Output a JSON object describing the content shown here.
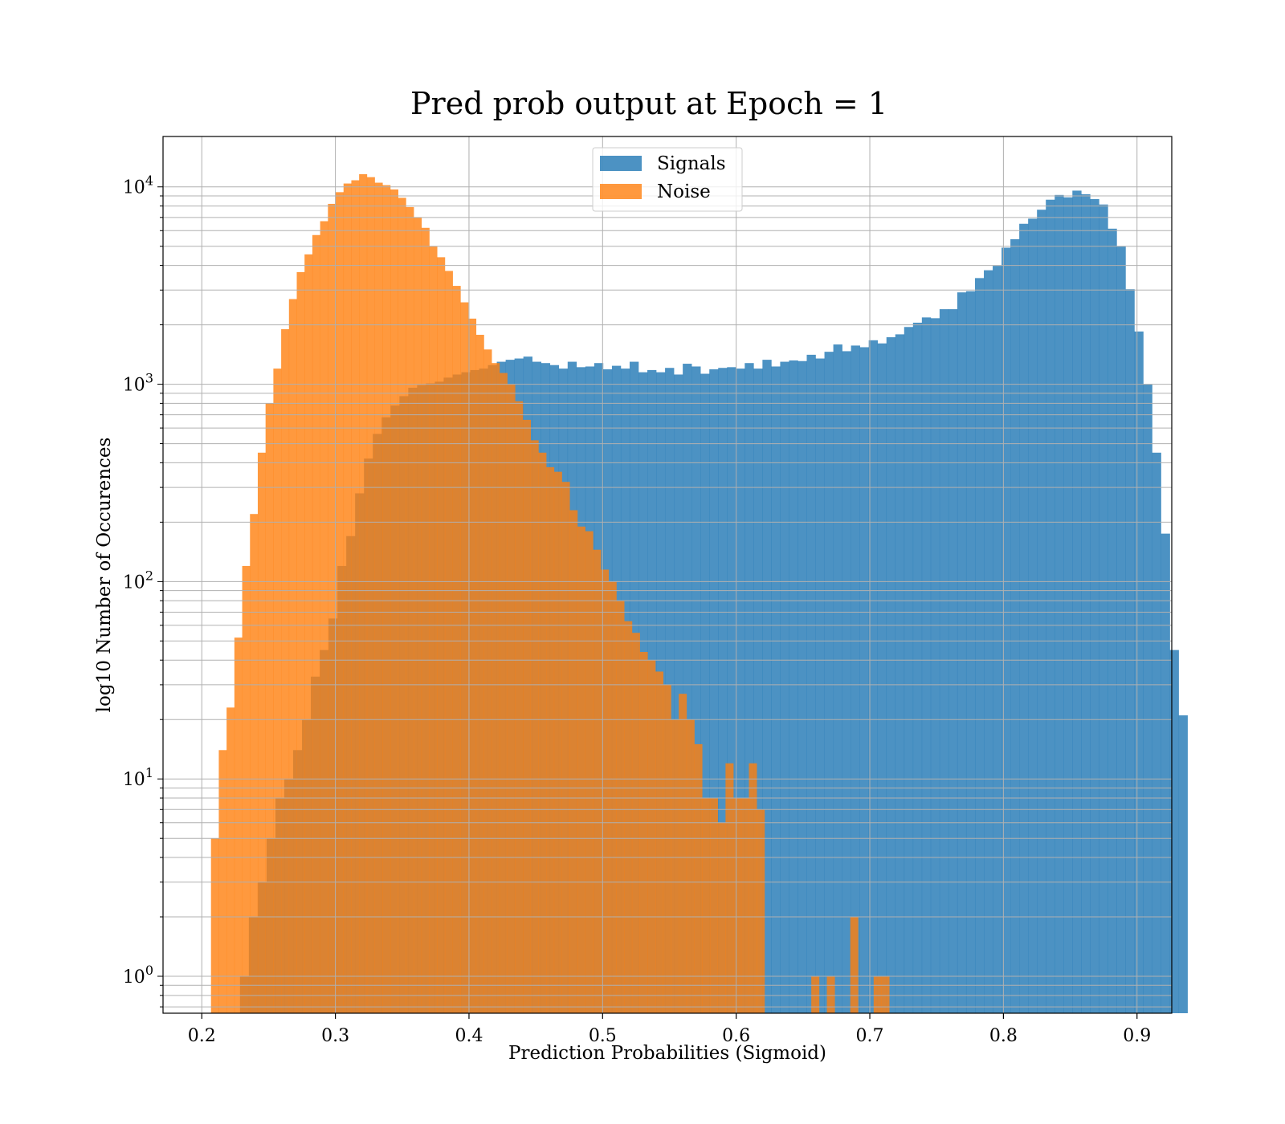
{
  "chart_data": {
    "type": "bar",
    "subtype": "overlaid histogram",
    "title": "Pred prob output at Epoch = 1",
    "xlabel": "Prediction Probabilities (Sigmoid)",
    "ylabel": "log10 Number of Occurences",
    "x_scale": "linear",
    "y_scale": "log",
    "xlim": [
      0.171,
      0.926
    ],
    "ylim": [
      0.65,
      18000
    ],
    "x_ticks": [
      0.2,
      0.3,
      0.4,
      0.5,
      0.6,
      0.7,
      0.8,
      0.9
    ],
    "x_tick_labels": [
      "0.2",
      "0.3",
      "0.4",
      "0.5",
      "0.6",
      "0.7",
      "0.8",
      "0.9"
    ],
    "y_ticks": [
      1,
      10,
      100,
      1000,
      10000
    ],
    "y_tick_labels": [
      {
        "base": "10",
        "exp": "0"
      },
      {
        "base": "10",
        "exp": "1"
      },
      {
        "base": "10",
        "exp": "2"
      },
      {
        "base": "10",
        "exp": "3"
      },
      {
        "base": "10",
        "exp": "4"
      }
    ],
    "grid": "major and minor, both axes",
    "legend": {
      "placement": "upper center"
    },
    "series": [
      {
        "name": "Signals",
        "color": "#1f77b4",
        "alpha": 0.8,
        "bin_start": 0.2286,
        "bin_width": 0.006628,
        "counts": [
          1,
          2,
          3,
          5,
          8,
          10,
          14,
          20,
          33,
          45,
          65,
          120,
          170,
          280,
          420,
          560,
          680,
          780,
          870,
          960,
          990,
          1010,
          1030,
          1080,
          1120,
          1150,
          1180,
          1200,
          1250,
          1300,
          1330,
          1350,
          1380,
          1300,
          1280,
          1250,
          1200,
          1300,
          1220,
          1230,
          1280,
          1190,
          1240,
          1200,
          1300,
          1150,
          1180,
          1150,
          1210,
          1120,
          1270,
          1230,
          1130,
          1190,
          1210,
          1220,
          1200,
          1280,
          1200,
          1330,
          1230,
          1300,
          1320,
          1310,
          1410,
          1350,
          1460,
          1590,
          1470,
          1570,
          1540,
          1670,
          1610,
          1730,
          1790,
          1950,
          2050,
          2180,
          2160,
          2400,
          2400,
          2920,
          2960,
          3450,
          3780,
          3980,
          4920,
          5430,
          6500,
          6900,
          7660,
          8610,
          9100,
          8850,
          9570,
          9180,
          8670,
          8140,
          6140,
          5010,
          3030,
          1850,
          1000,
          450,
          175,
          45,
          21
        ]
      },
      {
        "name": "Noise",
        "color": "#ff7f0e",
        "alpha": 0.8,
        "bin_start": 0.2069,
        "bin_width": 0.005835,
        "counts": [
          5,
          14,
          23,
          52,
          120,
          220,
          450,
          800,
          1200,
          1900,
          2700,
          3700,
          4550,
          5700,
          6700,
          8200,
          9400,
          10400,
          10800,
          11600,
          11200,
          10500,
          10200,
          9700,
          8800,
          7900,
          7000,
          6200,
          5000,
          4400,
          3750,
          3150,
          2600,
          2150,
          1780,
          1500,
          1280,
          1140,
          1000,
          820,
          660,
          520,
          450,
          380,
          360,
          320,
          230,
          190,
          180,
          145,
          115,
          100,
          80,
          63,
          55,
          44,
          40,
          35,
          30,
          20,
          27,
          20,
          15,
          8,
          8,
          6,
          12,
          8,
          8,
          12,
          7,
          0,
          0,
          0,
          0,
          0,
          0,
          1,
          0,
          1,
          0,
          0,
          2,
          0,
          0,
          1,
          1,
          0,
          0,
          0,
          0,
          0,
          0,
          0,
          0,
          0,
          0,
          0,
          0,
          0,
          0,
          0,
          0,
          0,
          0,
          0,
          0,
          0,
          0,
          0,
          0,
          0,
          0,
          0,
          0,
          0,
          0,
          0,
          0,
          0
        ]
      }
    ]
  }
}
